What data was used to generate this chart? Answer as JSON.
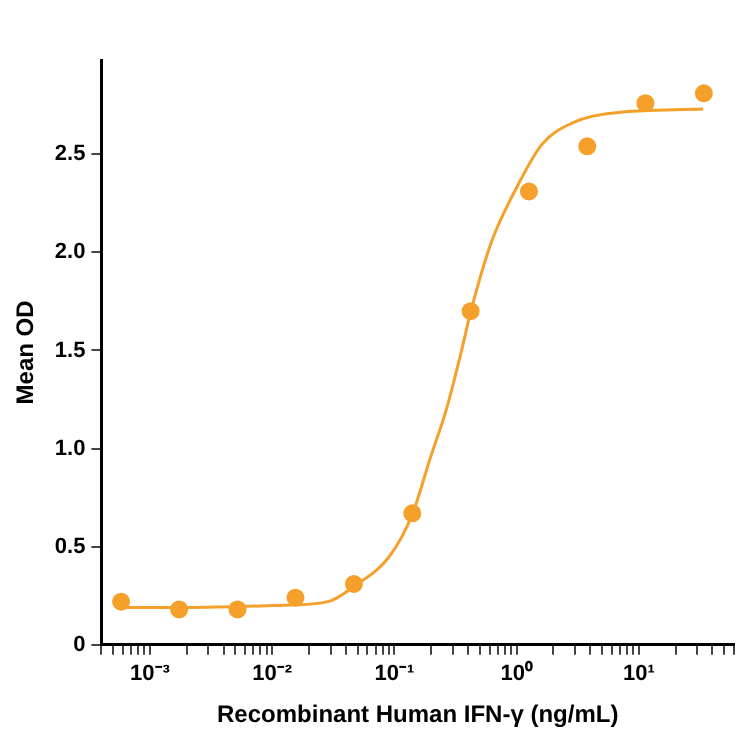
{
  "chart_data": {
    "type": "scatter",
    "xlabel": "Recombinant Human IFN-γ (ng/mL)",
    "ylabel": "Mean OD",
    "log": "x",
    "grid": false,
    "legend": false,
    "marker": "circle",
    "xlim": [
      0.0004,
      60
    ],
    "ylim": [
      0,
      2.98
    ],
    "xticks": [
      {
        "value": 0.0004,
        "label": null
      },
      {
        "value": 0.0005,
        "label": null
      },
      {
        "value": 0.0006,
        "label": null
      },
      {
        "value": 0.0007,
        "label": null
      },
      {
        "value": 0.0008,
        "label": null
      },
      {
        "value": 0.0009,
        "label": null
      },
      {
        "value": 0.001,
        "label": "10⁻³"
      },
      {
        "value": 0.002,
        "label": null
      },
      {
        "value": 0.003,
        "label": null
      },
      {
        "value": 0.004,
        "label": null
      },
      {
        "value": 0.005,
        "label": null
      },
      {
        "value": 0.006,
        "label": null
      },
      {
        "value": 0.007,
        "label": null
      },
      {
        "value": 0.008,
        "label": null
      },
      {
        "value": 0.009,
        "label": null
      },
      {
        "value": 0.01,
        "label": "10⁻²"
      },
      {
        "value": 0.02,
        "label": null
      },
      {
        "value": 0.03,
        "label": null
      },
      {
        "value": 0.04,
        "label": null
      },
      {
        "value": 0.05,
        "label": null
      },
      {
        "value": 0.06,
        "label": null
      },
      {
        "value": 0.07,
        "label": null
      },
      {
        "value": 0.08,
        "label": null
      },
      {
        "value": 0.09,
        "label": null
      },
      {
        "value": 0.1,
        "label": "10⁻¹"
      },
      {
        "value": 0.2,
        "label": null
      },
      {
        "value": 0.3,
        "label": null
      },
      {
        "value": 0.4,
        "label": null
      },
      {
        "value": 0.5,
        "label": null
      },
      {
        "value": 0.6,
        "label": null
      },
      {
        "value": 0.7,
        "label": null
      },
      {
        "value": 0.8,
        "label": null
      },
      {
        "value": 0.9,
        "label": null
      },
      {
        "value": 1,
        "label": "10⁰"
      },
      {
        "value": 2,
        "label": null
      },
      {
        "value": 3,
        "label": null
      },
      {
        "value": 4,
        "label": null
      },
      {
        "value": 5,
        "label": null
      },
      {
        "value": 6,
        "label": null
      },
      {
        "value": 7,
        "label": null
      },
      {
        "value": 8,
        "label": null
      },
      {
        "value": 9,
        "label": null
      },
      {
        "value": 10,
        "label": "10¹"
      },
      {
        "value": 20,
        "label": null
      },
      {
        "value": 30,
        "label": null
      },
      {
        "value": 40,
        "label": null
      },
      {
        "value": 50,
        "label": null
      },
      {
        "value": 60,
        "label": null
      }
    ],
    "yticks": [
      0,
      0.5,
      {
        "value": 1,
        "label": "1.0"
      },
      1.5,
      {
        "value": 2,
        "label": "2.0"
      },
      2.5
    ],
    "series": [
      {
        "color": "#f5a02a",
        "x": [
          0.00058,
          0.00173,
          0.0052,
          0.0155,
          0.0466,
          0.14,
          0.42,
          1.26,
          3.78,
          11.3,
          34
        ],
        "values": [
          0.22,
          0.18,
          0.18,
          0.24,
          0.31,
          0.67,
          1.7,
          2.31,
          2.54,
          2.76,
          2.81
        ]
      },
      {
        "type": "line",
        "color": "#f5a02a",
        "marker": "none",
        "x": [
          0.00058,
          0.00196,
          0.0102,
          0.0287,
          0.0473,
          0.0908,
          0.139,
          0.196,
          0.266,
          0.348,
          0.422,
          0.619,
          1.0,
          1.61,
          2.87,
          6.19,
          33.5
        ],
        "values": [
          0.19,
          0.19,
          0.2,
          0.22,
          0.3,
          0.45,
          0.66,
          0.95,
          1.2,
          1.48,
          1.7,
          2.05,
          2.33,
          2.55,
          2.66,
          2.71,
          2.73
        ]
      }
    ]
  }
}
